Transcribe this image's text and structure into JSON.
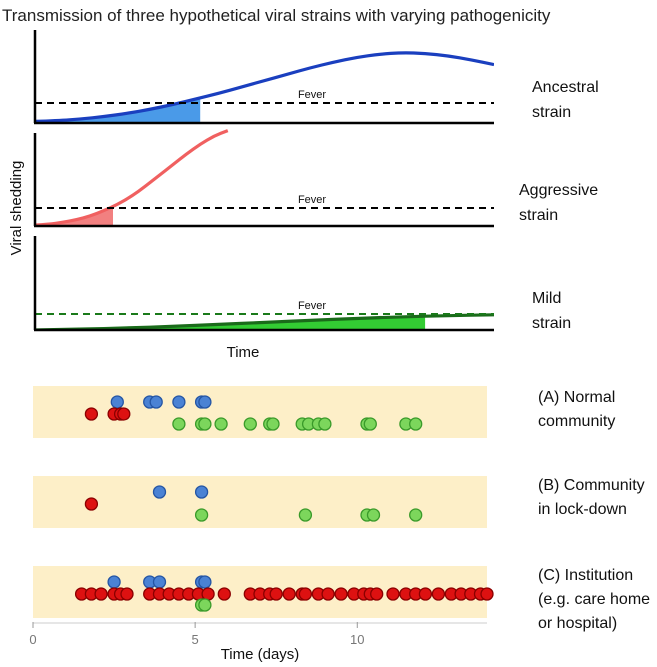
{
  "chart_data": [
    {
      "type": "line",
      "title": "Transmission of three hypothetical viral strains with varying pathogenicity",
      "xlabel": "Time",
      "ylabel": "Viral shedding",
      "panels": [
        {
          "key": "ancestral",
          "label_lines": [
            "Ancestral",
            "strain"
          ],
          "threshold_label": "Fever",
          "threshold": 0.25,
          "fever_onset_x": 0.36,
          "color": "#1a3fbf",
          "fill": "#4a9ae8",
          "dash": "#000000",
          "curve_x": [
            0,
            0.05,
            0.1,
            0.15,
            0.2,
            0.25,
            0.3,
            0.35,
            0.4,
            0.45,
            0.5,
            0.55,
            0.6,
            0.65,
            0.7,
            0.75,
            0.8,
            0.85,
            0.9,
            0.95,
            1.0
          ],
          "curve_y": [
            0.02,
            0.03,
            0.05,
            0.08,
            0.12,
            0.17,
            0.23,
            0.3,
            0.37,
            0.45,
            0.53,
            0.61,
            0.69,
            0.76,
            0.82,
            0.86,
            0.88,
            0.87,
            0.84,
            0.79,
            0.73
          ]
        },
        {
          "key": "aggressive",
          "label_lines": [
            "Aggressive",
            "strain"
          ],
          "threshold_label": "Fever",
          "threshold": 0.2,
          "fever_onset_x": 0.17,
          "color": "#f06060",
          "fill": "#f28080",
          "dash": "#000000",
          "curve_x": [
            0,
            0.03,
            0.06,
            0.09,
            0.12,
            0.15,
            0.18,
            0.21,
            0.24,
            0.27,
            0.3,
            0.33,
            0.36,
            0.39,
            0.42
          ],
          "curve_y": [
            0.01,
            0.02,
            0.04,
            0.07,
            0.11,
            0.17,
            0.24,
            0.33,
            0.44,
            0.56,
            0.68,
            0.8,
            0.91,
            1.0,
            1.06
          ]
        },
        {
          "key": "mild",
          "label_lines": [
            "Mild",
            "strain"
          ],
          "threshold_label": "Fever",
          "threshold": 0.2,
          "fever_onset_x": 0.85,
          "color": "#1a6b1a",
          "fill": "#33cc33",
          "dash": "#1a7a1a",
          "curve_x": [
            0,
            0.1,
            0.2,
            0.3,
            0.4,
            0.5,
            0.6,
            0.7,
            0.8,
            0.9,
            1.0
          ],
          "curve_y": [
            0.0,
            0.01,
            0.025,
            0.045,
            0.07,
            0.095,
            0.12,
            0.145,
            0.165,
            0.18,
            0.19
          ]
        }
      ]
    },
    {
      "type": "scatter",
      "xlabel": "Time (days)",
      "xlim": [
        0,
        14
      ],
      "xticks": [
        "0",
        "5",
        "10"
      ],
      "xtick_values": [
        0,
        5,
        10
      ],
      "colors": {
        "aggressive": "#dd1111",
        "ancestral": "#4a82d4",
        "mild": "#7cd65c",
        "panel_bg": "#fdefc8"
      },
      "panels": [
        {
          "key": "A",
          "label_lines": [
            "(A) Normal",
            "community"
          ],
          "rows": [
            {
              "strain": "ancestral",
              "x": [
                2.6,
                3.6,
                3.8,
                4.5,
                5.2,
                5.3
              ]
            },
            {
              "strain": "aggressive",
              "x": [
                1.8,
                2.5,
                2.7,
                2.8
              ]
            },
            {
              "strain": "mild",
              "x": [
                4.5,
                5.2,
                5.3,
                5.8,
                6.7,
                7.3,
                7.4,
                8.3,
                8.5,
                8.8,
                9.0,
                10.3,
                10.4,
                11.5,
                11.8
              ]
            }
          ]
        },
        {
          "key": "B",
          "label_lines": [
            "(B) Community",
            "in lock-down"
          ],
          "rows": [
            {
              "strain": "ancestral",
              "x": [
                3.9,
                5.2
              ]
            },
            {
              "strain": "aggressive",
              "x": [
                1.8
              ]
            },
            {
              "strain": "mild",
              "x": [
                5.2,
                8.4,
                10.3,
                10.5,
                11.8
              ]
            }
          ]
        },
        {
          "key": "C",
          "label_lines": [
            "(C) Institution",
            "(e.g. care home",
            "or hospital)"
          ],
          "rows": [
            {
              "strain": "ancestral",
              "x": [
                2.5,
                3.6,
                3.9,
                5.2,
                5.3
              ]
            },
            {
              "strain": "aggressive",
              "x": [
                1.5,
                1.8,
                2.1,
                2.5,
                2.7,
                2.9,
                3.6,
                3.9,
                4.2,
                4.5,
                4.8,
                5.1,
                5.4,
                5.9,
                6.7,
                7.0,
                7.3,
                7.5,
                7.9,
                8.3,
                8.4,
                8.8,
                9.1,
                9.5,
                9.9,
                10.2,
                10.4,
                10.6,
                11.1,
                11.5,
                11.8,
                12.1,
                12.5,
                12.9,
                13.2,
                13.5,
                13.8,
                14.0
              ]
            },
            {
              "strain": "mild",
              "x": [
                5.2,
                5.3
              ]
            }
          ]
        }
      ]
    }
  ]
}
